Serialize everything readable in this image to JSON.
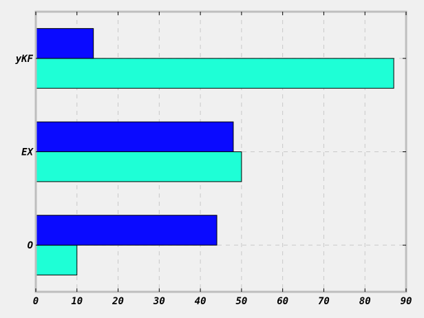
{
  "chart_data": {
    "type": "bar",
    "orientation": "horizontal",
    "categories": [
      "O",
      "EX",
      "yKF"
    ],
    "series": [
      {
        "values": [
          10,
          50,
          87
        ],
        "color": "#1effd6"
      },
      {
        "values": [
          44,
          48,
          14
        ],
        "color": "#0a0aff"
      }
    ],
    "x_ticks": [
      0,
      10,
      20,
      30,
      40,
      50,
      60,
      70,
      80,
      90
    ],
    "xlim": [
      0,
      90
    ],
    "title": "",
    "xlabel": "",
    "ylabel": "",
    "grid": true,
    "legend": "none",
    "colors": {
      "background": "#f0f0f0",
      "frame": "#bebebe",
      "grid": "#c8c8c8",
      "bar_edge": "#000000"
    }
  }
}
